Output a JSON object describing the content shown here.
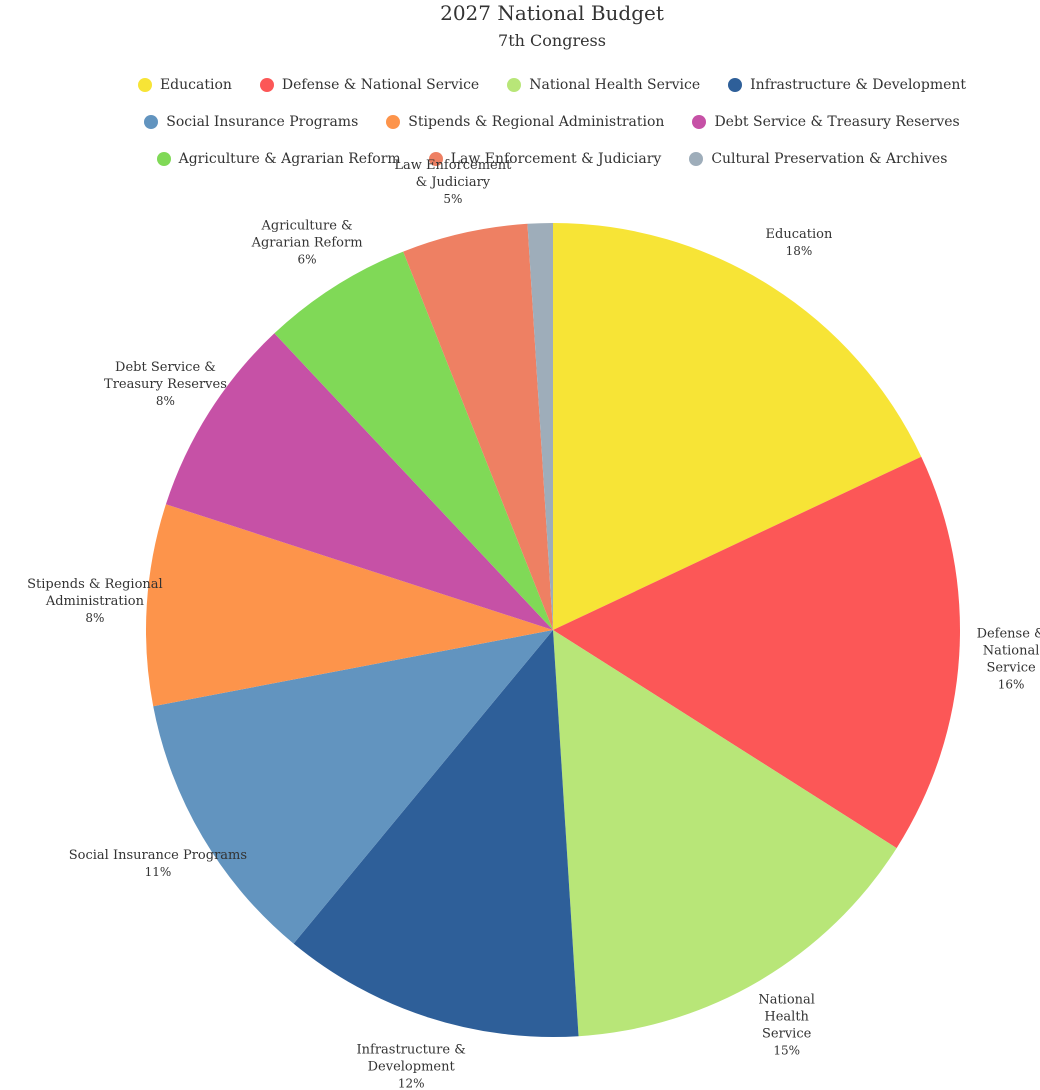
{
  "chart_data": {
    "type": "pie",
    "title": "2027 National Budget",
    "subtitle": "7th Congress",
    "legend_position": "top",
    "slices": [
      {
        "name": "Education",
        "value": 18,
        "label": "18%",
        "label_lines": [
          "Education"
        ],
        "color": "#f7e436"
      },
      {
        "name": "Defense & National Service",
        "value": 16,
        "label": "16%",
        "label_lines": [
          "Defense &",
          "National",
          "Service"
        ],
        "color": "#fc5757"
      },
      {
        "name": "National Health Service",
        "value": 15,
        "label": "15%",
        "label_lines": [
          "National",
          "Health",
          "Service"
        ],
        "color": "#b8e678"
      },
      {
        "name": "Infrastructure & Development",
        "value": 12,
        "label": "12%",
        "label_lines": [
          "Infrastructure &",
          "Development"
        ],
        "color": "#2e5f99"
      },
      {
        "name": "Social Insurance Programs",
        "value": 11,
        "label": "11%",
        "label_lines": [
          "Social Insurance Programs"
        ],
        "color": "#6294bf"
      },
      {
        "name": "Stipends & Regional Administration",
        "value": 8,
        "label": "8%",
        "label_lines": [
          "Stipends & Regional",
          "Administration"
        ],
        "color": "#fd944b"
      },
      {
        "name": "Debt Service & Treasury Reserves",
        "value": 8,
        "label": "8%",
        "label_lines": [
          "Debt Service &",
          "Treasury Reserves"
        ],
        "color": "#c651a6"
      },
      {
        "name": "Agriculture & Agrarian Reform",
        "value": 6,
        "label": "6%",
        "label_lines": [
          "Agriculture &",
          "Agrarian Reform"
        ],
        "color": "#80d957"
      },
      {
        "name": "Law Enforcement & Judiciary",
        "value": 5,
        "label": "5%",
        "label_lines": [
          "Law Enforcement",
          "& Judiciary"
        ],
        "color": "#ee8063"
      },
      {
        "name": "Cultural Preservation & Archives",
        "value": 1,
        "label": "",
        "label_lines": [],
        "color": "#9eadba"
      }
    ]
  },
  "legend": {
    "rows": [
      [
        "Education",
        "Defense & National Service",
        "National Health Service",
        "Infrastructure & Development"
      ],
      [
        "Social Insurance Programs",
        "Stipends & Regional Administration",
        "Debt Service & Treasury Reserves"
      ],
      [
        "Agriculture & Agrarian Reform",
        "Law Enforcement & Judiciary",
        "Cultural Preservation & Archives"
      ]
    ]
  }
}
